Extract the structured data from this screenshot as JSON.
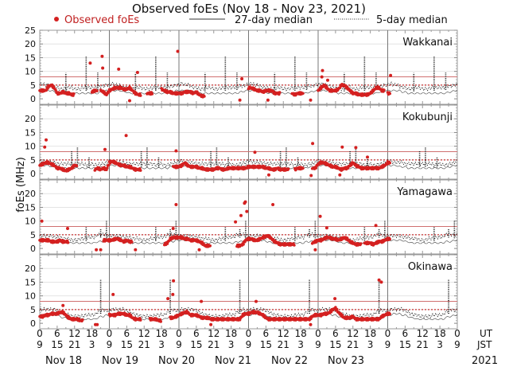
{
  "chart_data": {
    "type": "scatter",
    "title": "Observed foEs (Nov 18 - Nov 23, 2021)",
    "ylabel": "foEs (MHz)",
    "ylim": [
      -2,
      25
    ],
    "yticks": [
      0,
      5,
      10,
      15,
      20,
      25
    ],
    "reference_lines": {
      "solid_red": 8,
      "dotted_red": 5
    },
    "legend": {
      "placement": "top",
      "observed": "Observed foEs",
      "median27": "27-day median",
      "median5": "5-day median"
    },
    "x_axis": {
      "ut_label": "UT",
      "jst_label": "JST",
      "year": "2021",
      "ut_ticks": [
        "0",
        "6",
        "12",
        "18",
        "0",
        "6",
        "12",
        "18",
        "0",
        "6",
        "12",
        "18",
        "0",
        "6",
        "12",
        "18",
        "0",
        "6",
        "12",
        "18",
        "0",
        "6",
        "12",
        "18",
        "0"
      ],
      "jst_ticks": [
        "9",
        "15",
        "21",
        "3",
        "9",
        "15",
        "21",
        "3",
        "9",
        "15",
        "21",
        "3",
        "9",
        "15",
        "21",
        "3",
        "9",
        "15",
        "21",
        "3",
        "9",
        "15",
        "21",
        "3",
        "9"
      ],
      "dates": [
        "Nov 18",
        "Nov 19",
        "Nov 20",
        "Nov 21",
        "Nov 22",
        "Nov 23"
      ]
    },
    "colors": {
      "observed": "#d42020",
      "median": "#111111",
      "ref": "#c83030"
    },
    "stations": [
      {
        "name": "Wakkanai",
        "observed_hourly_ut": [
          3,
          3,
          3,
          4.5,
          5,
          4,
          2,
          2,
          2.5,
          2,
          2,
          1.5,
          null,
          null,
          null,
          null,
          null,
          null,
          2.5,
          3,
          null,
          3,
          2.5,
          1.5,
          3,
          3.5,
          4,
          4,
          4,
          3.5,
          3.5,
          4,
          3,
          2,
          1.5,
          null,
          null,
          2,
          2,
          null,
          null,
          null,
          3.5,
          3,
          2.5,
          2.5,
          2,
          2,
          2,
          2,
          2.5,
          2.5,
          2.5,
          2,
          2.5,
          1.5,
          1,
          null,
          null,
          null,
          null,
          null,
          null,
          null,
          null,
          null,
          null,
          null,
          null,
          null,
          null,
          null,
          4,
          4,
          3.5,
          3,
          3,
          2.5,
          3,
          3,
          3,
          2,
          2,
          null,
          null,
          null,
          null,
          2,
          1.5,
          2,
          2,
          null,
          null,
          null,
          null,
          null,
          3,
          4,
          5,
          4,
          3,
          3,
          3,
          3.5,
          5,
          5,
          4,
          3,
          2,
          2,
          1.5,
          1.5,
          1.5,
          1.5,
          2,
          3,
          4,
          4,
          3,
          null,
          2,
          null,
          null,
          null,
          null,
          null,
          null,
          null,
          null,
          null,
          null,
          null,
          null,
          null,
          null,
          null,
          null,
          null,
          null,
          null,
          null,
          null,
          null,
          null
        ],
        "outliers": [
          [
            17.4,
            13
          ],
          [
            21.5,
            15.5
          ],
          [
            21.7,
            11.2
          ],
          [
            27.2,
            10.8
          ],
          [
            31,
            -0.7
          ],
          [
            33.7,
            9.6
          ],
          [
            47.6,
            17.3
          ],
          [
            69.7,
            7.3
          ],
          [
            69,
            -0.5
          ],
          [
            78.7,
            -0.5
          ],
          [
            93.4,
            -0.5
          ],
          [
            97.5,
            10.3
          ],
          [
            97.3,
            8
          ],
          [
            99.3,
            6.8
          ],
          [
            121,
            8.5
          ]
        ],
        "median5_daily": [
          4,
          4.5,
          4,
          4,
          3.5,
          3,
          3,
          2.5,
          2.5,
          9.5,
          3,
          3,
          2.5,
          2.5,
          2.5,
          3,
          15.5,
          3,
          3,
          3,
          9.5,
          3.5,
          3.5,
          4
        ],
        "median27_daily": [
          3,
          3,
          3,
          3,
          3,
          2.5,
          2.5,
          2,
          2,
          2,
          2,
          2,
          2,
          2,
          2,
          2,
          2,
          2,
          2,
          2,
          2,
          2.5,
          2.5,
          3
        ]
      },
      {
        "name": "Kokubunji",
        "observed_hourly_ut": [
          3,
          3.5,
          4,
          4,
          3.5,
          3,
          2,
          2,
          1.5,
          1,
          1.5,
          2,
          3,
          null,
          null,
          null,
          null,
          null,
          null,
          1.5,
          2,
          1.5,
          2,
          1.5,
          4,
          4.5,
          4,
          3.5,
          3,
          3,
          2.5,
          2.5,
          2,
          1.5,
          1.5,
          null,
          null,
          null,
          null,
          null,
          null,
          null,
          null,
          null,
          null,
          null,
          2.5,
          2.5,
          2.5,
          3,
          4,
          3,
          2.5,
          2.5,
          2.5,
          2,
          2,
          1.5,
          1.5,
          1.5,
          1.5,
          2,
          2,
          1.5,
          1.5,
          2,
          2,
          2,
          2,
          2,
          2,
          2,
          2.5,
          2.5,
          2.5,
          2.5,
          2.5,
          2.5,
          2,
          2,
          1.5,
          1.5,
          2,
          1.5,
          1.5,
          1.5,
          null,
          null,
          1.5,
          2,
          2,
          null,
          null,
          null,
          2,
          2,
          3.5,
          4,
          4,
          3.5,
          3,
          2.5,
          2.5,
          2,
          1.5,
          2,
          2,
          3,
          4,
          3,
          2.5,
          2,
          2,
          2,
          2,
          2,
          2,
          2,
          2.5,
          3,
          4,
          null,
          null,
          null,
          null,
          null,
          null,
          null,
          null,
          null,
          null,
          null,
          null,
          null,
          null,
          null,
          null,
          null,
          null,
          null,
          null,
          null,
          null,
          null
        ],
        "outliers": [
          [
            1.7,
            9.7
          ],
          [
            2.2,
            12.3
          ],
          [
            22.5,
            8.8
          ],
          [
            29.8,
            13.9
          ],
          [
            47,
            8.3
          ],
          [
            74.2,
            7.8
          ],
          [
            79,
            -0.5
          ],
          [
            94.1,
            11
          ],
          [
            93.6,
            -0.7
          ],
          [
            104.3,
            9.7
          ],
          [
            103.5,
            -0.5
          ],
          [
            109,
            9.5
          ],
          [
            113,
            6
          ]
        ],
        "median5_daily": [
          3.5,
          3.5,
          3,
          3,
          3,
          3,
          2.5,
          2.5,
          2.5,
          2.5,
          2.5,
          8.5,
          2.5,
          9.5,
          2.5,
          2.5,
          2,
          6,
          2.5,
          2,
          2,
          2.5,
          2.5,
          3
        ],
        "median27_daily": [
          3,
          3,
          3,
          3,
          2.5,
          2.5,
          2.5,
          2,
          2,
          2,
          2,
          2,
          2,
          2,
          2,
          2,
          2,
          2,
          2,
          2,
          2,
          2.5,
          2.5,
          3
        ]
      },
      {
        "name": "Yamagawa",
        "observed_hourly_ut": [
          3,
          3,
          3,
          3,
          2.5,
          2.5,
          2.5,
          3,
          2.5,
          2.5,
          null,
          null,
          null,
          null,
          null,
          null,
          null,
          null,
          null,
          null,
          null,
          null,
          3,
          3,
          3,
          3,
          3.5,
          3.5,
          3,
          2.5,
          3,
          2.5,
          null,
          null,
          null,
          null,
          null,
          null,
          null,
          null,
          null,
          null,
          null,
          1.5,
          2,
          3.5,
          4,
          4,
          4,
          4,
          3.5,
          3.5,
          3,
          3,
          3,
          2.5,
          2,
          1,
          1,
          null,
          null,
          null,
          null,
          null,
          null,
          null,
          null,
          null,
          1,
          1,
          1.5,
          3,
          3.5,
          3.5,
          3,
          3,
          3.5,
          4,
          4.5,
          4.5,
          3.5,
          2.5,
          2,
          1.5,
          1.5,
          1.5,
          1.5,
          1.5,
          null,
          null,
          null,
          null,
          null,
          null,
          2,
          2.5,
          3,
          3,
          3.5,
          4,
          4,
          3.5,
          3.5,
          3,
          3.5,
          4,
          3.5,
          2.5,
          2,
          1.5,
          1.5,
          null,
          2,
          2,
          2,
          1.5,
          2,
          2.5,
          2.5,
          3,
          3.5,
          null,
          null,
          null,
          null,
          null,
          null,
          null,
          null,
          null,
          null,
          null,
          null,
          null,
          null,
          null,
          null,
          null,
          null,
          null,
          null,
          null,
          null,
          null
        ],
        "outliers": [
          [
            0.7,
            10
          ],
          [
            9.6,
            7.3
          ],
          [
            19.5,
            -0.5
          ],
          [
            21,
            -0.5
          ],
          [
            33,
            -0.5
          ],
          [
            47,
            16
          ],
          [
            46,
            7.3
          ],
          [
            55,
            -0.5
          ],
          [
            67.5,
            9.7
          ],
          [
            69.4,
            12
          ],
          [
            70.9,
            17
          ],
          [
            70.6,
            16.5
          ],
          [
            71.4,
            13.5
          ],
          [
            80.4,
            16
          ],
          [
            96.7,
            11.7
          ],
          [
            95,
            -0.5
          ],
          [
            99,
            7.5
          ],
          [
            115.9,
            8.4
          ]
        ],
        "median5_daily": [
          3.5,
          3.5,
          3.5,
          3.5,
          3.5,
          3,
          3,
          3,
          2.5,
          2.5,
          2.5,
          2,
          2,
          2,
          2.5,
          2.5,
          8,
          3,
          3,
          3,
          4,
          7,
          4,
          10
        ],
        "median27_daily": [
          3,
          3,
          3,
          3,
          3,
          3,
          2.5,
          2.5,
          2,
          2,
          2,
          2,
          2,
          2,
          2,
          2,
          2,
          2,
          2,
          2,
          2.5,
          2.5,
          2.5,
          3
        ]
      },
      {
        "name": "Okinawa",
        "observed_hourly_ut": [
          2.5,
          2.5,
          3,
          3,
          3.5,
          3.5,
          3.5,
          4,
          4,
          3,
          2,
          1.5,
          1.5,
          1.5,
          1,
          null,
          null,
          null,
          null,
          null,
          null,
          null,
          null,
          null,
          3,
          3,
          3,
          3.5,
          3.5,
          3.5,
          3,
          3,
          2,
          1.5,
          1.5,
          null,
          null,
          null,
          1.5,
          1.5,
          1.5,
          1,
          null,
          null,
          null,
          2,
          2,
          2.5,
          3,
          3.5,
          4,
          4,
          3,
          3,
          3,
          2.5,
          2,
          2,
          2,
          1.5,
          1.5,
          1.5,
          1.5,
          1.5,
          1.5,
          1.5,
          1.5,
          1.5,
          1.5,
          1.5,
          3,
          3.5,
          3.5,
          4,
          4,
          4,
          3.5,
          3,
          2,
          1.5,
          1.5,
          1.5,
          1.5,
          1.5,
          1.5,
          1.5,
          1.5,
          1.5,
          1.5,
          1.5,
          1.5,
          1.5,
          1.5,
          1.5,
          2.5,
          3,
          3,
          3,
          3.5,
          3.5,
          4,
          5,
          5.5,
          4,
          3,
          2,
          2,
          2,
          2.5,
          1.5,
          1.5,
          1.5,
          1.5,
          1.5,
          1.5,
          1.5,
          1.5,
          1.5,
          2.5,
          3,
          3.5,
          null,
          null,
          null,
          null,
          null,
          null,
          null,
          null,
          null,
          null,
          null,
          null,
          null,
          null,
          null,
          null,
          null,
          null,
          null,
          null,
          null,
          null,
          null
        ],
        "outliers": [
          [
            25.3,
            10.5
          ],
          [
            44.2,
            9
          ],
          [
            46.1,
            15.5
          ],
          [
            45.9,
            10.5
          ],
          [
            55.7,
            8
          ],
          [
            74.6,
            8
          ],
          [
            101.8,
            9
          ],
          [
            117,
            15.8
          ],
          [
            117.8,
            15
          ],
          [
            19.2,
            -0.5
          ],
          [
            19.8,
            -0.5
          ],
          [
            59,
            -0.5
          ],
          [
            93.4,
            -0.5
          ],
          [
            8,
            6.5
          ]
        ],
        "median5_daily": [
          3.5,
          4,
          4,
          4,
          4,
          4,
          3.5,
          3,
          2.5,
          2,
          2,
          1.5,
          1.5,
          1.5,
          1.5,
          1.5,
          2,
          2,
          2,
          2,
          3,
          16,
          4,
          3.5
        ],
        "median27_daily": [
          3,
          3,
          3.5,
          3.5,
          3.5,
          3,
          3,
          2.5,
          2,
          2,
          1.5,
          1.5,
          1.5,
          1.5,
          1.5,
          1.5,
          1.5,
          1.5,
          1.5,
          1.5,
          2,
          2.5,
          2.5,
          3
        ]
      }
    ]
  }
}
